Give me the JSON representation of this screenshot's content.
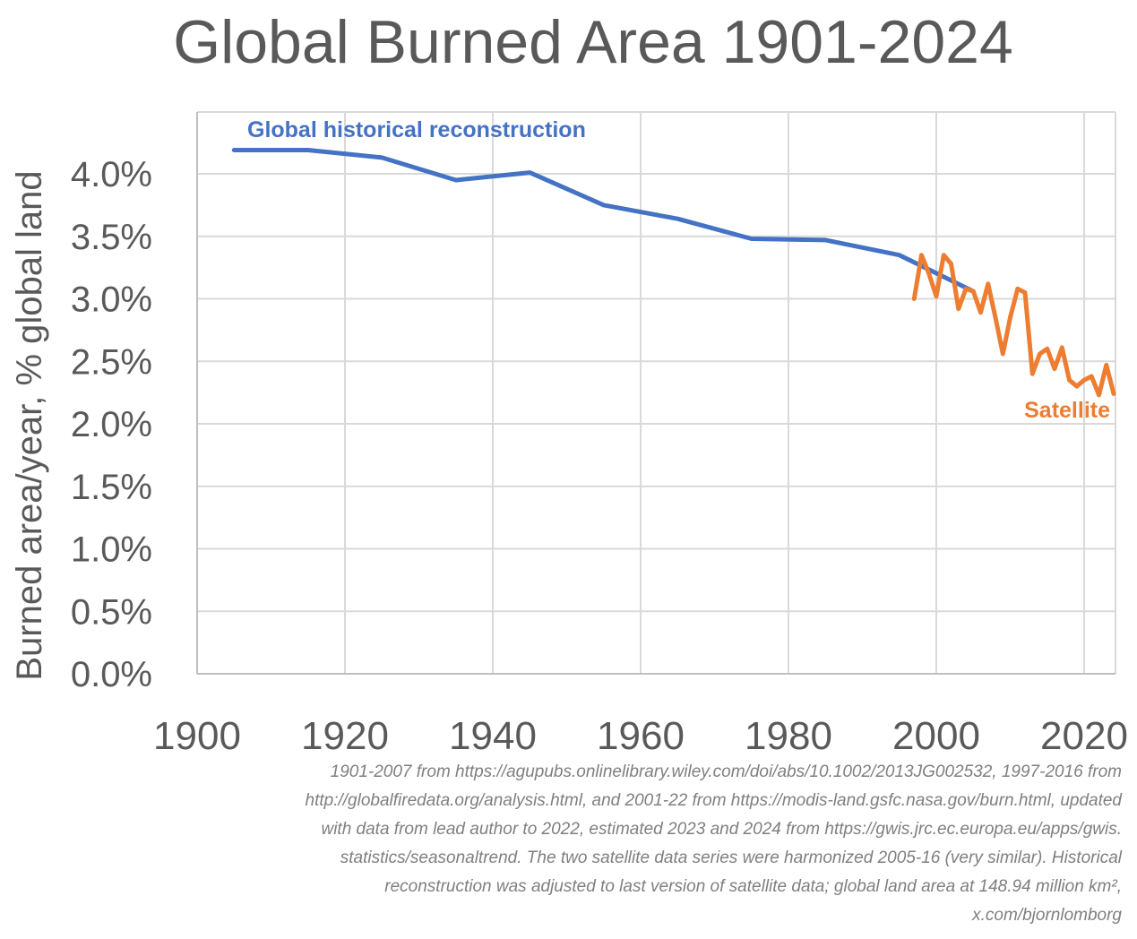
{
  "chart_data": {
    "type": "line",
    "title": "Global Burned Area 1901-2024",
    "ylabel": "Burned area/year, % global land",
    "xlabel": "",
    "xlim": [
      1900,
      2025
    ],
    "ylim": [
      0,
      4.2
    ],
    "x_ticks": [
      "1900",
      "1920",
      "1940",
      "1960",
      "1980",
      "2000",
      "2020"
    ],
    "y_ticks": [
      "0.0%",
      "0.5%",
      "1.0%",
      "1.5%",
      "2.0%",
      "2.5%",
      "3.0%",
      "3.5%",
      "4.0%"
    ],
    "grid": true,
    "series": [
      {
        "name": "Global historical reconstruction",
        "color": "#4472C4",
        "x": [
          1905,
          1915,
          1925,
          1935,
          1945,
          1955,
          1965,
          1975,
          1985,
          1995,
          2005
        ],
        "y": [
          4.19,
          4.19,
          4.13,
          3.95,
          4.01,
          3.75,
          3.64,
          3.48,
          3.47,
          3.35,
          3.06
        ]
      },
      {
        "name": "Satellite",
        "color": "#ED7D31",
        "x": [
          1997,
          1998,
          1999,
          2000,
          2001,
          2002,
          2003,
          2004,
          2005,
          2006,
          2007,
          2008,
          2009,
          2010,
          2011,
          2012,
          2013,
          2014,
          2015,
          2016,
          2017,
          2018,
          2019,
          2020,
          2021,
          2022,
          2023,
          2024
        ],
        "y": [
          3.0,
          3.35,
          3.2,
          3.02,
          3.35,
          3.28,
          2.92,
          3.08,
          3.06,
          2.89,
          3.12,
          2.85,
          2.56,
          2.85,
          3.08,
          3.05,
          2.4,
          2.56,
          2.6,
          2.44,
          2.61,
          2.35,
          2.3,
          2.35,
          2.38,
          2.23,
          2.47,
          2.24
        ]
      }
    ]
  },
  "source": [
    "1901-2007 from https://agupubs.onlinelibrary.wiley.com/doi/abs/10.1002/2013JG002532, 1997-2016 from",
    "http://globalfiredata.org/analysis.html, and 2001-22 from https://modis-land.gsfc.nasa.gov/burn.html, updated",
    "with data from lead author to 2022, estimated 2023 and 2024 from https://gwis.jrc.ec.europa.eu/apps/gwis.",
    "statistics/seasonaltrend. The two satellite data series were harmonized 2005-16 (very similar). Historical",
    "reconstruction was adjusted to last version of satellite data; global land area at 148.94 million km²,",
    "x.com/bjornlomborg"
  ]
}
